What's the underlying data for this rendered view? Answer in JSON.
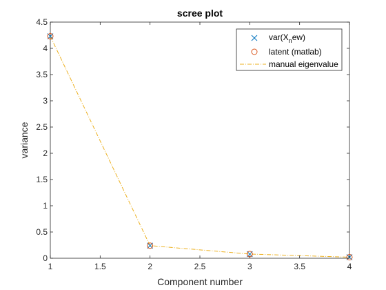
{
  "chart_data": {
    "type": "line",
    "title": "scree plot",
    "xlabel": "Component number",
    "ylabel": "variance",
    "xlim": [
      1,
      4
    ],
    "ylim": [
      0,
      4.5
    ],
    "xticks": [
      1,
      1.5,
      2,
      2.5,
      3,
      3.5,
      4
    ],
    "xtick_labels": [
      "1",
      "1.5",
      "2",
      "2.5",
      "3",
      "3.5",
      "4"
    ],
    "yticks": [
      0,
      0.5,
      1,
      1.5,
      2,
      2.5,
      3,
      3.5,
      4,
      4.5
    ],
    "ytick_labels": [
      "0",
      "0.5",
      "1",
      "1.5",
      "2",
      "2.5",
      "3",
      "3.5",
      "4",
      "4.5"
    ],
    "grid": false,
    "legend_position": "top-right",
    "x": [
      1,
      2,
      3,
      4
    ],
    "series": [
      {
        "name": "var(X_new)",
        "legend_parts": {
          "base": "var(X",
          "sub": "n",
          "rest": "ew)"
        },
        "marker": "x",
        "line": "none",
        "color": "#0072BD",
        "values": [
          4.23,
          0.24,
          0.08,
          0.02
        ]
      },
      {
        "name": "latent (matlab)",
        "marker": "o",
        "line": "none",
        "color": "#D95319",
        "values": [
          4.23,
          0.24,
          0.08,
          0.02
        ]
      },
      {
        "name": "manual eigenvalue",
        "marker": "none",
        "line": "dash-dot",
        "color": "#EDB120",
        "values": [
          4.23,
          0.24,
          0.08,
          0.02
        ]
      }
    ]
  }
}
